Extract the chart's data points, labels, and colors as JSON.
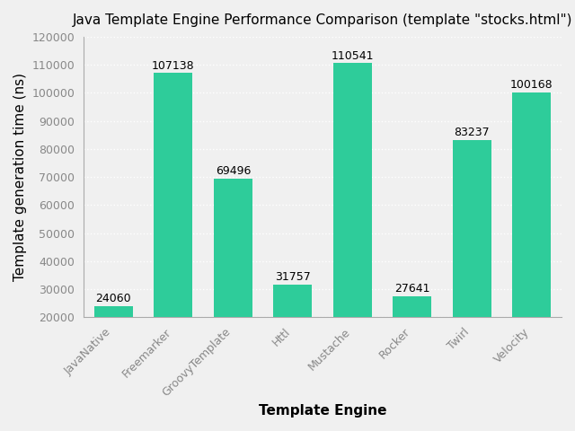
{
  "title": "Java Template Engine Performance Comparison (template \"stocks.html\")",
  "xlabel": "Template Engine",
  "ylabel": "Template generation time (ns)",
  "categories": [
    "JavaNative",
    "Freemarker",
    "GroovyTemplate",
    "Httl",
    "Mustache",
    "Rocker",
    "Twirl",
    "Velocity"
  ],
  "values": [
    24060,
    107138,
    69496,
    31757,
    110541,
    27641,
    83237,
    100168
  ],
  "bar_color": "#2ECC9A",
  "ylim": [
    20000,
    120000
  ],
  "yticks": [
    20000,
    30000,
    40000,
    50000,
    60000,
    70000,
    80000,
    90000,
    100000,
    110000,
    120000
  ],
  "background_color": "#f0f0f0",
  "grid_color": "#ffffff",
  "title_fontsize": 11,
  "label_fontsize": 11,
  "tick_fontsize": 9,
  "tick_color": "#888888",
  "spine_color": "#aaaaaa"
}
